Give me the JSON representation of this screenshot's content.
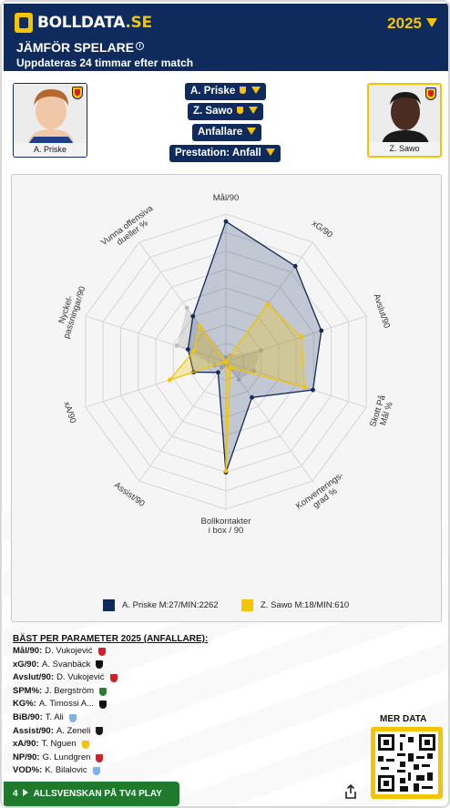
{
  "header": {
    "logo_main": "BOLLDATA",
    "logo_suffix": ".SE",
    "year": "2025",
    "title": "JÄMFÖR SPELARE",
    "info_icon": "info-circle-icon",
    "subtitle": "Uppdateras 24 timmar efter match"
  },
  "players": {
    "left": {
      "name": "A. Priske",
      "color": "#0f2a5c"
    },
    "right": {
      "name": "Z. Sawo",
      "color": "#f5c400"
    }
  },
  "selectors": {
    "player1": "A. Priske",
    "player2": "Z. Sawo",
    "position": "Anfallare",
    "performance": "Prestation: Anfall"
  },
  "chart_data": {
    "type": "radar",
    "axes": [
      "Mål/90",
      "xG/90",
      "Avslut/90",
      "Skott På Mål %",
      "Konverterings-grad %",
      "Bollkontakter i box / 90",
      "Assist/90",
      "xA/90",
      "Nyckel-passningar/90",
      "Vunna offensiva dueller %"
    ],
    "axis_label_lines": [
      [
        "Mål/90"
      ],
      [
        "xG/90"
      ],
      [
        "Avslut/90"
      ],
      [
        "Skott På",
        "Mål %"
      ],
      [
        "Konverterings-",
        "grad %"
      ],
      [
        "Bollkontakter",
        "i box / 90"
      ],
      [
        "Assist/90"
      ],
      [
        "xA/90"
      ],
      [
        "Nyckel-",
        "passningar/90"
      ],
      [
        "Vunna offensiva",
        "dueller %"
      ]
    ],
    "range": [
      0,
      100
    ],
    "rings": 8,
    "series": [
      {
        "name": "A. Priske M:27/MIN:2262",
        "color": "#0f2a5c",
        "values": [
          95,
          80,
          68,
          62,
          30,
          75,
          9,
          23,
          27,
          38
        ]
      },
      {
        "name": "Z. Sawo M:18/MIN:610",
        "color": "#f5c400",
        "values": [
          0,
          48,
          54,
          56,
          5,
          74,
          0,
          40,
          23,
          30
        ]
      },
      {
        "name": "",
        "color": "#aaaaaa",
        "values": [
          3,
          5,
          25,
          20,
          15,
          3,
          5,
          8,
          35,
          45
        ]
      }
    ],
    "legend": [
      {
        "label": "A. Priske M:27/MIN:2262",
        "color": "#0f2a5c"
      },
      {
        "label": "Z. Sawo M:18/MIN:610",
        "color": "#f5c400"
      }
    ]
  },
  "best": {
    "title": "BÄST PER PARAMETER 2025 (ANFALLARE):",
    "rows": [
      {
        "key": "Mål/90:",
        "player": "D. Vukojević",
        "crest": "#d0202a"
      },
      {
        "key": "xG/90:",
        "player": "A. Svanbäck",
        "crest": "#111111"
      },
      {
        "key": "Avslut/90:",
        "player": "D. Vukojević",
        "crest": "#d0202a"
      },
      {
        "key": "SPM%:",
        "player": "J. Bergström",
        "crest": "#2e7d32"
      },
      {
        "key": "KG%:",
        "player": "A. Timossi A...",
        "crest": "#111111"
      },
      {
        "key": "BiB/90:",
        "player": "T. Ali",
        "crest": "#7fb2e5"
      },
      {
        "key": "Assist/90:",
        "player": "A. Zeneli",
        "crest": "#1a1a1a"
      },
      {
        "key": "xA/90:",
        "player": "T. Nguen",
        "crest": "#f5c400"
      },
      {
        "key": "NP/90:",
        "player": "G. Lundgren",
        "crest": "#d0202a"
      },
      {
        "key": "VOD%:",
        "player": "K. Bilalovic",
        "crest": "#7fb2e5"
      }
    ]
  },
  "mer_data": "MER DATA",
  "bottom": {
    "count": "4",
    "label": "ALLSVENSKAN PÅ TV4 PLAY"
  },
  "icons": {
    "share": "share-icon",
    "qr": "qr-code-icon"
  }
}
